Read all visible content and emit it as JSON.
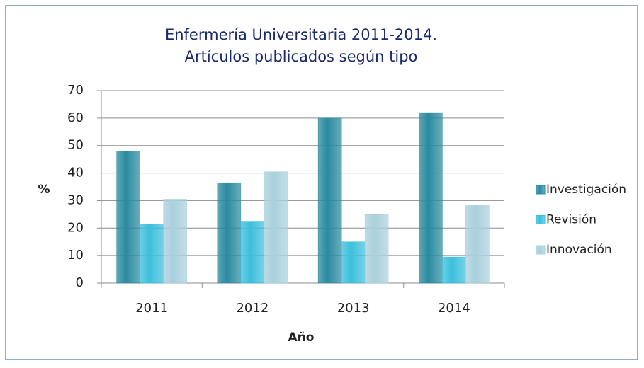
{
  "chart_data": {
    "type": "bar",
    "title": [
      "Enfermería Universitaria 2011-2014.",
      "Artículos publicados según tipo"
    ],
    "x_label": "Año",
    "y_label": "%",
    "categories": [
      "2011",
      "2012",
      "2013",
      "2014"
    ],
    "series": [
      {
        "name": "Investigación",
        "color": "#2b8aa0",
        "values": [
          48,
          36.5,
          60,
          62
        ]
      },
      {
        "name": "Revisión",
        "color": "#3cbfdc",
        "values": [
          21.5,
          22.5,
          15,
          9.5
        ]
      },
      {
        "name": "Innovación",
        "color": "#a9d0dc",
        "values": [
          30.5,
          40.5,
          25,
          28.5
        ]
      }
    ],
    "ylim": [
      0,
      70
    ],
    "yticks": [
      0,
      10,
      20,
      30,
      40,
      50,
      60,
      70
    ],
    "grid": true,
    "legend": "right"
  }
}
